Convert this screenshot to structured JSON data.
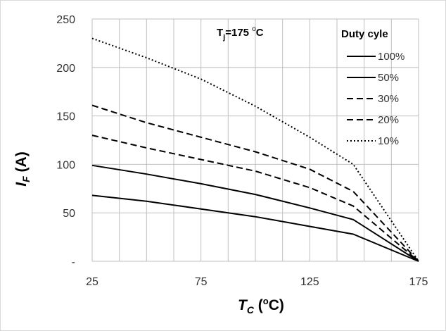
{
  "chart_data": {
    "type": "line",
    "title": "",
    "annotation": {
      "prefix": "T",
      "sub": "j",
      "value": "=175 ",
      "sup": "o",
      "unit": "C"
    },
    "xlabel": {
      "main": "T",
      "sub": "C",
      "unit_open": " (",
      "sup": "o",
      "unit_close": "C)"
    },
    "ylabel": {
      "main": "I",
      "sub": "F",
      "unit": " (A)"
    },
    "xlim": [
      25,
      175
    ],
    "ylim": [
      0,
      250
    ],
    "xticks": [
      25,
      75,
      125,
      175
    ],
    "xtick_labels": [
      "25",
      "75",
      "125",
      "175"
    ],
    "yticks": [
      0,
      50,
      100,
      150,
      200,
      250
    ],
    "ytick_labels": [
      "-",
      "50",
      "100",
      "150",
      "200",
      "250"
    ],
    "grid": true,
    "x_minor_step": 12.5,
    "legend": {
      "title": "Duty cyle",
      "position": "top-right"
    },
    "series": [
      {
        "name": "100%",
        "style": "solid",
        "color": "#000000",
        "x": [
          25,
          50,
          75,
          100,
          125,
          145,
          175
        ],
        "y": [
          68,
          62,
          54,
          46,
          36,
          28,
          0
        ]
      },
      {
        "name": "50%",
        "style": "solid",
        "color": "#000000",
        "x": [
          25,
          50,
          75,
          100,
          125,
          145,
          175
        ],
        "y": [
          99,
          90,
          80,
          69,
          55,
          43,
          0
        ]
      },
      {
        "name": "30%",
        "style": "dashed",
        "color": "#000000",
        "x": [
          25,
          50,
          75,
          100,
          125,
          145,
          175
        ],
        "y": [
          130,
          117,
          105,
          93,
          76,
          57,
          0
        ]
      },
      {
        "name": "20%",
        "style": "dashed",
        "color": "#000000",
        "x": [
          25,
          50,
          75,
          100,
          125,
          145,
          175
        ],
        "y": [
          161,
          143,
          128,
          113,
          95,
          72,
          0
        ]
      },
      {
        "name": "10%",
        "style": "dotted",
        "color": "#000000",
        "x": [
          25,
          50,
          75,
          100,
          125,
          145,
          175
        ],
        "y": [
          230,
          210,
          188,
          160,
          128,
          100,
          0
        ]
      }
    ]
  }
}
